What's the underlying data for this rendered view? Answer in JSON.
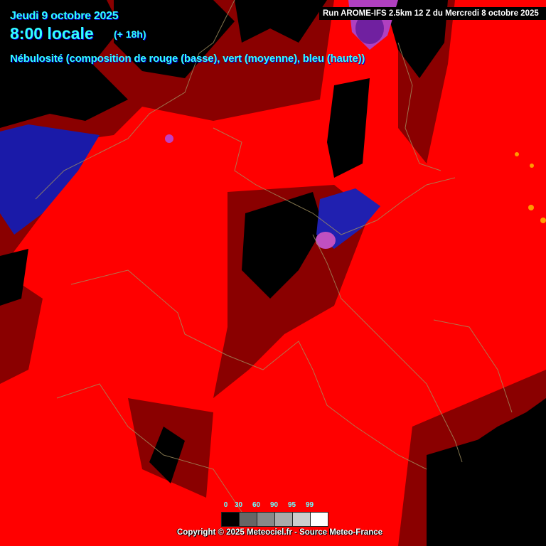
{
  "header": {
    "date": "Jeudi 9 octobre 2025",
    "time": "8:00 locale",
    "lead": "(+ 18h)",
    "parameter": "Nébulosité (composition de rouge (basse), vert (moyenne), bleu (haute))",
    "run": "Run AROME-IFS 2.5km 12 Z du Mercredi 8 octobre 2025"
  },
  "legend": {
    "labels": [
      "0",
      "30",
      "60",
      "90",
      "95",
      "99"
    ],
    "colors": [
      "#000000",
      "#666666",
      "#888888",
      "#aaaaaa",
      "#cccccc",
      "#ffffff"
    ]
  },
  "footer": {
    "copyright": "Copyright © 2025 Meteociel.fr - Source Meteo-France"
  },
  "colors": {
    "low_cloud": "#ff0000",
    "high_cloud": "#2020c0",
    "mixed": "#c040c0",
    "clear": "#000000",
    "borders": "#a09060",
    "text": "#33ffff"
  }
}
